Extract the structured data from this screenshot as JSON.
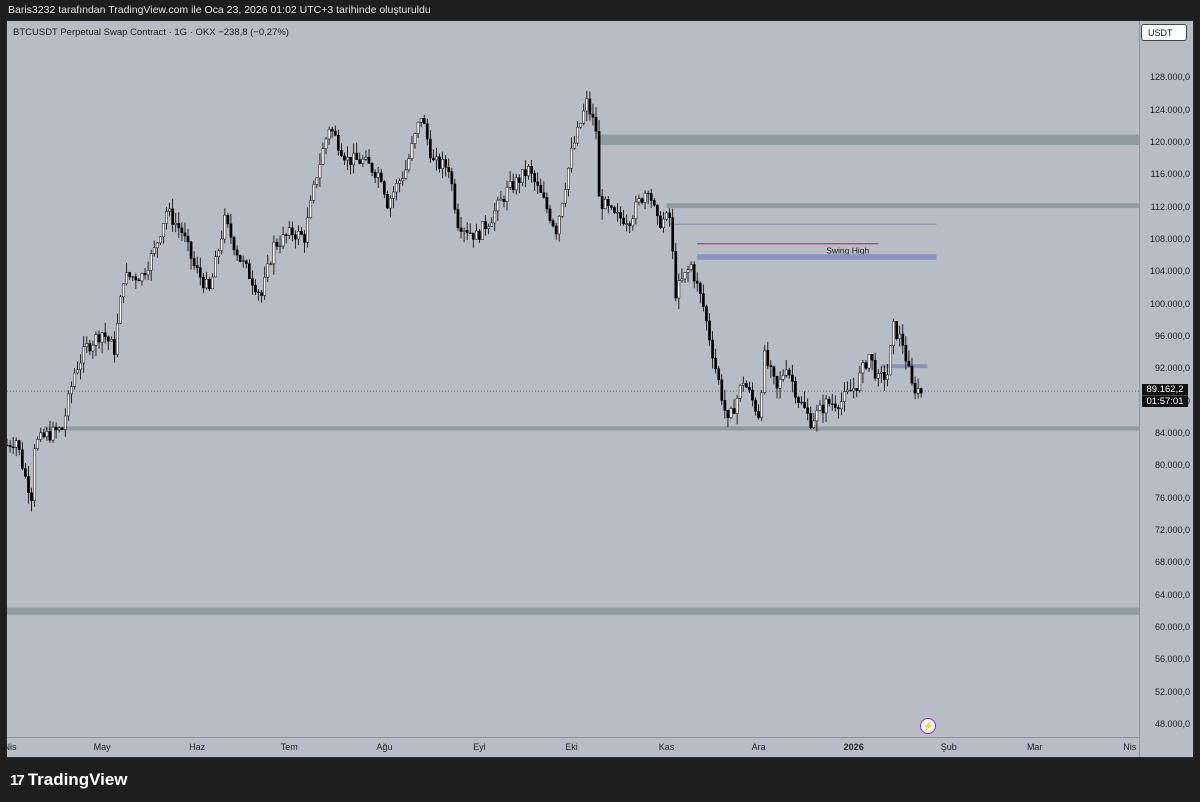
{
  "header": {
    "caption": "Baris3232 tarafından TradingView.com ile Oca 23, 2026 01:02 UTC+3 tarihinde oluşturuldu"
  },
  "symbol": {
    "label": "BTCUSDT Perpetual Swap Contract · 1G · OKX  −238,8 (−0,27%)"
  },
  "currency_button": "USDT",
  "price_tag": {
    "price": "89.162,2",
    "countdown": "01:57:01"
  },
  "brand": {
    "name": "TradingView",
    "mark": "17"
  },
  "colors": {
    "zone": "#8e9e9e",
    "blue_zone": "#8a94c0",
    "swing_line": "#c2185b",
    "candle_up": "#ffffff",
    "candle_down": "#000000",
    "background": "#b8bcc4"
  },
  "chart_data": {
    "type": "candlestick",
    "title": "",
    "ylim": [
      47000,
      130000
    ],
    "y_ticks": [
      48000,
      52000,
      56000,
      60000,
      64000,
      68000,
      72000,
      76000,
      80000,
      84000,
      88000,
      92000,
      96000,
      100000,
      104000,
      108000,
      112000,
      116000,
      120000,
      124000,
      128000
    ],
    "y_tick_labels": [
      "48.000,0",
      "52.000,0",
      "56.000,0",
      "60.000,0",
      "64.000,0",
      "68.000,0",
      "72.000,0",
      "76.000,0",
      "80.000,0",
      "84.000,0",
      "88.000,0",
      "92.000,0",
      "96.000,0",
      "100.000,0",
      "104.000,0",
      "108.000,0",
      "112.000,0",
      "116.000,0",
      "120.000,0",
      "124.000,0",
      "128.000,0"
    ],
    "x_range": [
      "2025-03-31",
      "2026-04-04"
    ],
    "x_ticks": [
      {
        "date": "2025-04-01",
        "label": "Nis"
      },
      {
        "date": "2025-05-01",
        "label": "May"
      },
      {
        "date": "2025-06-01",
        "label": "Haz"
      },
      {
        "date": "2025-07-01",
        "label": "Tem"
      },
      {
        "date": "2025-08-01",
        "label": "Ağu"
      },
      {
        "date": "2025-09-01",
        "label": "Eyl"
      },
      {
        "date": "2025-10-01",
        "label": "Eki"
      },
      {
        "date": "2025-11-01",
        "label": "Kas"
      },
      {
        "date": "2025-12-01",
        "label": "Ara"
      },
      {
        "date": "2026-01-01",
        "label": "2026",
        "bold": true
      },
      {
        "date": "2026-02-01",
        "label": "Şub"
      },
      {
        "date": "2026-03-01",
        "label": "Mar"
      },
      {
        "date": "2026-04-01",
        "label": "Nis"
      }
    ],
    "last_price": 89162.2,
    "close_series": [
      [
        "2025-03-31",
        82500
      ],
      [
        "2025-04-03",
        83200
      ],
      [
        "2025-04-06",
        78500
      ],
      [
        "2025-04-08",
        76300
      ],
      [
        "2025-04-09",
        82600
      ],
      [
        "2025-04-13",
        83700
      ],
      [
        "2025-04-18",
        84500
      ],
      [
        "2025-04-22",
        91500
      ],
      [
        "2025-04-26",
        94600
      ],
      [
        "2025-05-01",
        96500
      ],
      [
        "2025-05-05",
        94300
      ],
      [
        "2025-05-08",
        103200
      ],
      [
        "2025-05-14",
        103500
      ],
      [
        "2025-05-18",
        106500
      ],
      [
        "2025-05-22",
        111500
      ],
      [
        "2025-05-27",
        108900
      ],
      [
        "2025-05-31",
        104600
      ],
      [
        "2025-06-05",
        101500
      ],
      [
        "2025-06-10",
        110200
      ],
      [
        "2025-06-15",
        105500
      ],
      [
        "2025-06-22",
        101000
      ],
      [
        "2025-06-26",
        107200
      ],
      [
        "2025-07-02",
        108800
      ],
      [
        "2025-07-06",
        108200
      ],
      [
        "2025-07-10",
        116000
      ],
      [
        "2025-07-14",
        121900
      ],
      [
        "2025-07-20",
        117800
      ],
      [
        "2025-07-25",
        117600
      ],
      [
        "2025-07-31",
        115800
      ],
      [
        "2025-08-02",
        112500
      ],
      [
        "2025-08-08",
        116600
      ],
      [
        "2025-08-13",
        123300
      ],
      [
        "2025-08-17",
        117400
      ],
      [
        "2025-08-22",
        116900
      ],
      [
        "2025-08-25",
        110100
      ],
      [
        "2025-08-31",
        108300
      ],
      [
        "2025-09-05",
        110700
      ],
      [
        "2025-09-10",
        113900
      ],
      [
        "2025-09-17",
        116500
      ],
      [
        "2025-09-22",
        112600
      ],
      [
        "2025-09-26",
        109200
      ],
      [
        "2025-10-01",
        118600
      ],
      [
        "2025-10-06",
        124800
      ],
      [
        "2025-10-09",
        121500
      ],
      [
        "2025-10-10",
        112900
      ],
      [
        "2025-10-15",
        110700
      ],
      [
        "2025-10-20",
        110500
      ],
      [
        "2025-10-26",
        114500
      ],
      [
        "2025-10-29",
        110000
      ],
      [
        "2025-11-02",
        110600
      ],
      [
        "2025-11-04",
        101400
      ],
      [
        "2025-11-09",
        104700
      ],
      [
        "2025-11-13",
        99600
      ],
      [
        "2025-11-17",
        92100
      ],
      [
        "2025-11-21",
        85100
      ],
      [
        "2025-11-26",
        90500
      ],
      [
        "2025-12-01",
        86300
      ],
      [
        "2025-12-03",
        93400
      ],
      [
        "2025-12-07",
        89200
      ],
      [
        "2025-12-10",
        92500
      ],
      [
        "2025-12-14",
        88200
      ],
      [
        "2025-12-18",
        85500
      ],
      [
        "2025-12-23",
        87600
      ],
      [
        "2025-12-28",
        87900
      ],
      [
        "2026-01-02",
        90000
      ],
      [
        "2026-01-06",
        93700
      ],
      [
        "2026-01-09",
        90500
      ],
      [
        "2026-01-12",
        91300
      ],
      [
        "2026-01-14",
        97000
      ],
      [
        "2026-01-17",
        95100
      ],
      [
        "2026-01-20",
        89700
      ],
      [
        "2026-01-22",
        89400
      ],
      [
        "2026-01-23",
        89162
      ]
    ],
    "annotations": [
      {
        "type": "zone",
        "from_date": "2025-10-10",
        "y_low": 119600,
        "y_high": 120900
      },
      {
        "type": "zone",
        "from_date": "2025-11-01",
        "y_low": 111800,
        "y_high": 112400
      },
      {
        "type": "hline",
        "from_date": "2025-11-02",
        "to_date": "2026-01-28",
        "y": 109800
      },
      {
        "type": "swing_line",
        "from_date": "2025-11-11",
        "to_date": "2026-01-09",
        "y": 107400,
        "label": "Swing High"
      },
      {
        "type": "blue_zone",
        "from_date": "2025-11-11",
        "to_date": "2026-01-28",
        "y_low": 105400,
        "y_high": 106100
      },
      {
        "type": "blue_zone",
        "from_date": "2026-01-10",
        "to_date": "2026-01-25",
        "y_low": 92000,
        "y_high": 92500
      },
      {
        "type": "zone",
        "from_date": "2025-04-12",
        "y_low": 84300,
        "y_high": 84800
      },
      {
        "type": "zone",
        "from_date": "2025-03-31",
        "y_low": 61500,
        "y_high": 62400
      }
    ]
  }
}
